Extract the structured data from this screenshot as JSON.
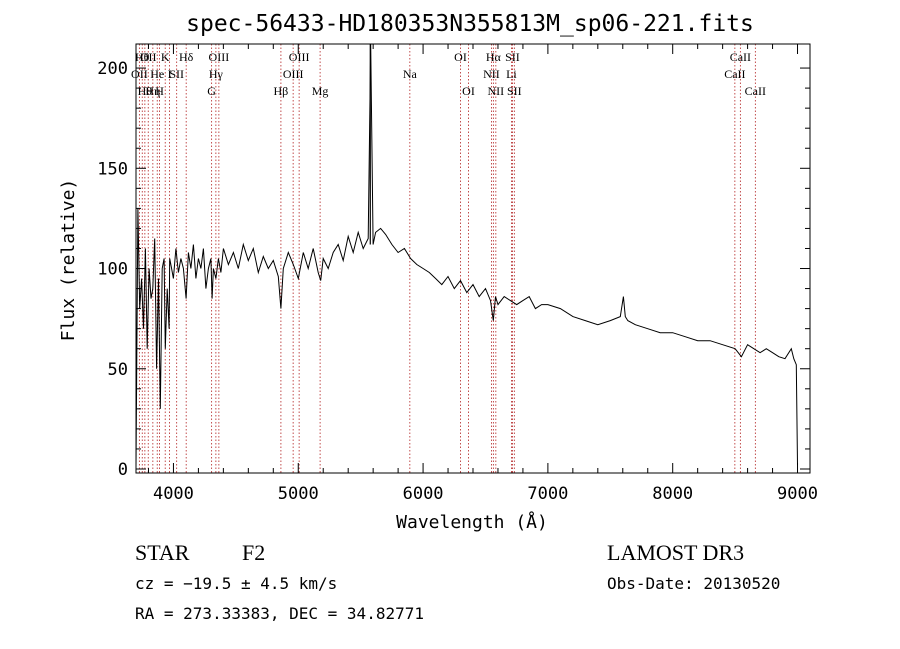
{
  "chart_data": {
    "type": "line",
    "title": "spec-56433-HD180353N355813M_sp06-221.fits",
    "xlabel": "Wavelength (Å)",
    "ylabel": "Flux (relative)",
    "xlim": [
      3700,
      9100
    ],
    "ylim": [
      -2,
      212
    ],
    "xticks": [
      4000,
      5000,
      6000,
      7000,
      8000,
      9000
    ],
    "yticks": [
      0,
      50,
      100,
      150,
      200
    ],
    "x": [
      3700,
      3715,
      3730,
      3745,
      3760,
      3775,
      3790,
      3805,
      3820,
      3835,
      3850,
      3865,
      3880,
      3895,
      3910,
      3925,
      3935,
      3950,
      3965,
      3970,
      3985,
      4000,
      4020,
      4040,
      4060,
      4080,
      4101,
      4120,
      4140,
      4160,
      4180,
      4200,
      4220,
      4240,
      4260,
      4280,
      4300,
      4310,
      4320,
      4340,
      4360,
      4380,
      4400,
      4440,
      4480,
      4520,
      4560,
      4600,
      4640,
      4680,
      4720,
      4760,
      4800,
      4840,
      4861,
      4880,
      4920,
      4960,
      5000,
      5040,
      5080,
      5120,
      5160,
      5180,
      5200,
      5240,
      5280,
      5320,
      5360,
      5400,
      5440,
      5480,
      5520,
      5560,
      5580,
      5600,
      5620,
      5660,
      5700,
      5750,
      5800,
      5850,
      5900,
      5950,
      6000,
      6050,
      6100,
      6150,
      6200,
      6250,
      6300,
      6350,
      6400,
      6450,
      6500,
      6540,
      6563,
      6580,
      6600,
      6650,
      6700,
      6750,
      6800,
      6850,
      6900,
      6950,
      7000,
      7100,
      7200,
      7300,
      7400,
      7500,
      7580,
      7605,
      7620,
      7640,
      7700,
      7800,
      7900,
      8000,
      8100,
      8200,
      8300,
      8400,
      8500,
      8550,
      8600,
      8650,
      8700,
      8750,
      8800,
      8850,
      8900,
      8950,
      8970,
      8990,
      9000
    ],
    "y": [
      1,
      130,
      80,
      95,
      70,
      110,
      60,
      100,
      85,
      90,
      115,
      50,
      95,
      30,
      100,
      105,
      60,
      90,
      70,
      105,
      100,
      95,
      110,
      98,
      105,
      100,
      85,
      108,
      100,
      112,
      95,
      105,
      100,
      110,
      90,
      100,
      105,
      85,
      100,
      95,
      105,
      98,
      110,
      102,
      108,
      100,
      112,
      104,
      110,
      98,
      106,
      100,
      104,
      96,
      80,
      100,
      108,
      102,
      95,
      108,
      100,
      110,
      98,
      94,
      105,
      100,
      108,
      112,
      104,
      116,
      108,
      118,
      110,
      115,
      212,
      112,
      118,
      120,
      117,
      112,
      108,
      110,
      105,
      102,
      100,
      98,
      95,
      92,
      96,
      90,
      94,
      88,
      92,
      86,
      90,
      84,
      74,
      86,
      82,
      86,
      84,
      82,
      84,
      86,
      80,
      82,
      82,
      80,
      76,
      74,
      72,
      74,
      76,
      86,
      76,
      74,
      72,
      70,
      68,
      68,
      66,
      64,
      64,
      62,
      60,
      56,
      62,
      60,
      58,
      60,
      58,
      56,
      55,
      60,
      55,
      52,
      2
    ],
    "spike": {
      "x": 5577,
      "y": 212
    },
    "lines": [
      {
        "w": 3727,
        "row": 2,
        "label": "OII"
      },
      {
        "w": 3750,
        "row": 1,
        "label": "Hθ"
      },
      {
        "w": 3771,
        "row": 3,
        "label": "Hθ"
      },
      {
        "w": 3798,
        "row": 1,
        "label": "OII"
      },
      {
        "w": 3835,
        "row": 3,
        "label": "Hη"
      },
      {
        "w": 3870,
        "row": 2,
        "label": "He"
      },
      {
        "w": 3889,
        "row": 3,
        "label": "H"
      },
      {
        "w": 3934,
        "row": 1,
        "label": "K"
      },
      {
        "w": 3969,
        "row": 2,
        "label": "I"
      },
      {
        "w": 4026,
        "row": 2,
        "label": "SII"
      },
      {
        "w": 4102,
        "row": 1,
        "label": "Hδ"
      },
      {
        "w": 4306,
        "row": 3,
        "label": "G"
      },
      {
        "w": 4340,
        "row": 2,
        "label": "Hγ"
      },
      {
        "w": 4364,
        "row": 1,
        "label": "OIII"
      },
      {
        "w": 4861,
        "row": 3,
        "label": "Hβ"
      },
      {
        "w": 4959,
        "row": 2,
        "label": "OIII"
      },
      {
        "w": 5007,
        "row": 1,
        "label": "OIII"
      },
      {
        "w": 5175,
        "row": 3,
        "label": "Mg"
      },
      {
        "w": 5894,
        "row": 2,
        "label": "Na"
      },
      {
        "w": 6300,
        "row": 1,
        "label": "OI"
      },
      {
        "w": 6364,
        "row": 3,
        "label": "OI"
      },
      {
        "w": 6548,
        "row": 2,
        "label": "NII"
      },
      {
        "w": 6563,
        "row": 1,
        "label": "Hα"
      },
      {
        "w": 6583,
        "row": 3,
        "label": "NII"
      },
      {
        "w": 6708,
        "row": 2,
        "label": "Li"
      },
      {
        "w": 6716,
        "row": 1,
        "label": "SII"
      },
      {
        "w": 6731,
        "row": 3,
        "label": "SII"
      },
      {
        "w": 8498,
        "row": 2,
        "label": "CaII"
      },
      {
        "w": 8542,
        "row": 1,
        "label": "CaII"
      },
      {
        "w": 8662,
        "row": 3,
        "label": "CaII"
      }
    ]
  },
  "info": {
    "object_class": "STAR",
    "subclass": "F2",
    "cz": "cz = −19.5 ± 4.5 km/s",
    "coords": "RA = 273.33383, DEC =  34.82771",
    "survey": "LAMOST DR3",
    "obs_date": "Obs-Date: 20130520"
  },
  "colors": {
    "line_marker": "#b22222",
    "spectrum": "#000000"
  }
}
